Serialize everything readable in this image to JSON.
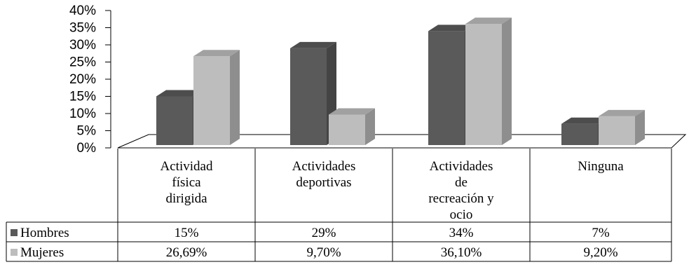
{
  "chart_data": {
    "type": "bar",
    "title": "",
    "xlabel": "",
    "ylabel": "",
    "ylim": [
      0,
      40
    ],
    "yticks": [
      "0%",
      "5%",
      "10%",
      "15%",
      "20%",
      "25%",
      "30%",
      "35%",
      "40%"
    ],
    "categories": [
      [
        "Actividad",
        "física",
        "dirigida"
      ],
      [
        "Actividades",
        "deportivas"
      ],
      [
        "Actividades",
        "de",
        "recreación y",
        "ocio"
      ],
      [
        "Ninguna"
      ]
    ],
    "series": [
      {
        "name": "Hombres",
        "color": "#5a5a5a",
        "values": [
          15,
          29,
          34,
          7
        ],
        "labels": [
          "15%",
          "29%",
          "34%",
          "7%"
        ]
      },
      {
        "name": "Mujeres",
        "color": "#bdbdbd",
        "values": [
          26.69,
          9.7,
          36.1,
          9.2
        ],
        "labels": [
          "26,69%",
          "9,70%",
          "36,10%",
          "9,20%"
        ]
      }
    ],
    "grid": false,
    "legend": "data-table"
  }
}
